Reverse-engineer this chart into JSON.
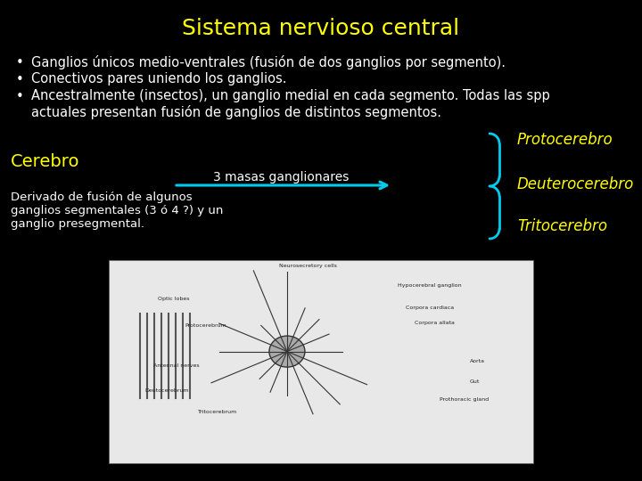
{
  "background_color": "#000000",
  "title": "Sistema nervioso central",
  "title_color": "#ffff00",
  "title_fontsize": 18,
  "bullet_color": "#ffffff",
  "bullet_fontsize": 10.5,
  "bullets": [
    "Ganglios únicos medio-ventrales (fusión de dos ganglios por segmento).",
    "Conectivos pares uniendo los ganglios.",
    "Ancestralmente (insectos), un ganglio medial en cada segmento. Todas las spp\nactuales presentan fusión de ganglios de distintos segmentos."
  ],
  "cerebro_label": "Cerebro",
  "cerebro_color": "#ffff00",
  "cerebro_fontsize": 14,
  "derivado_text": "Derivado de fusión de algunos\nganglios segmentales (3 ó 4 ?) y un\nganglio presegmental.",
  "derivado_color": "#ffffff",
  "derivado_fontsize": 9.5,
  "arrow_label": "3 masas ganglionares",
  "arrow_label_color": "#ffffff",
  "arrow_label_fontsize": 10,
  "arrow_color": "#00ccee",
  "brace_color": "#00ccee",
  "proto_label": "Protocerebro",
  "proto_color": "#ffff00",
  "proto_fontsize": 12,
  "deutero_label": "Deuterocerebro",
  "deutero_color": "#ffff00",
  "deutero_fontsize": 12,
  "trito_label": "Tritocerebro",
  "trito_color": "#ffff00",
  "trito_fontsize": 12
}
